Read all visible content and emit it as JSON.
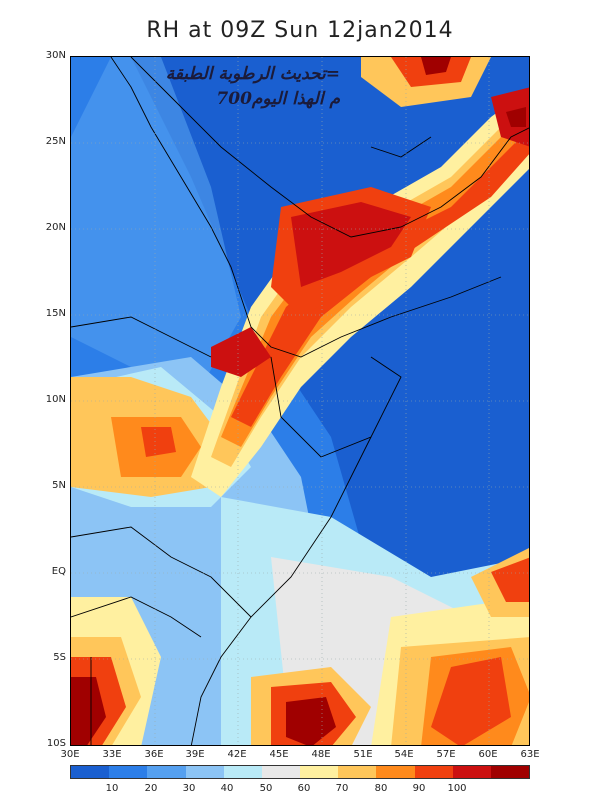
{
  "title": "RH at 09Z Sun 12jan2014",
  "overlay": {
    "line1": "تحديث الرطوبة الطبقة=",
    "line2": "700م الهذا اليوم"
  },
  "y_ticks": [
    "30N",
    "25N",
    "20N",
    "15N",
    "10N",
    "5N",
    "EQ",
    "5S",
    "10S"
  ],
  "x_ticks": [
    "30E",
    "33E",
    "36E",
    "39E",
    "42E",
    "45E",
    "48E",
    "51E",
    "54E",
    "57E",
    "60E",
    "63E"
  ],
  "colorbar": {
    "colors": [
      "#1a5fd0",
      "#2c7ee8",
      "#55a0f0",
      "#8cc4f5",
      "#b9eaf7",
      "#e8e8e8",
      "#fff0a0",
      "#ffc65a",
      "#ff8a1c",
      "#f0400f",
      "#cc1010",
      "#a00000"
    ],
    "labels": [
      "10",
      "20",
      "30",
      "40",
      "50",
      "60",
      "70",
      "80",
      "90",
      "100"
    ]
  }
}
